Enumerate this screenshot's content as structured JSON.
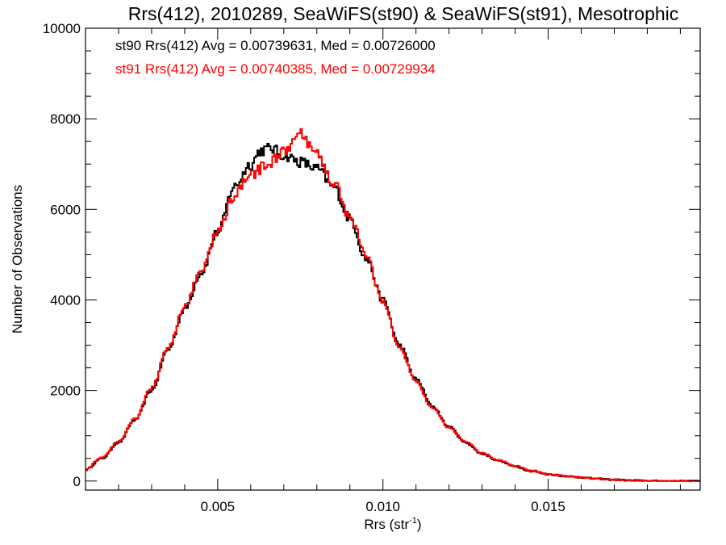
{
  "chart_data": {
    "type": "line",
    "title": "Rrs(412), 2010289, SeaWiFS(st90) & SeaWiFS(st91), Mesotrophic",
    "xlabel_base": "Rrs (str",
    "xlabel_sup": "-1",
    "xlabel_close": ")",
    "ylabel": "Number of Observations",
    "xlim": [
      0.001,
      0.0196
    ],
    "ylim": [
      -200,
      10000
    ],
    "x_ticks": [
      0.005,
      0.01,
      0.015
    ],
    "x_tick_labels": [
      "0.005",
      "0.010",
      "0.015"
    ],
    "y_ticks": [
      0,
      2000,
      4000,
      6000,
      8000,
      10000
    ],
    "y_tick_labels": [
      "0",
      "2000",
      "4000",
      "6000",
      "8000",
      "10000"
    ],
    "grid": false,
    "legend_position": "top-left",
    "series": [
      {
        "name": "st90",
        "label": "st90 Rrs(412) Avg = 0.00739631, Med = 0.00726000",
        "color": "#000000",
        "points": [
          [
            0.001,
            250
          ],
          [
            0.0015,
            500
          ],
          [
            0.002,
            850
          ],
          [
            0.0025,
            1350
          ],
          [
            0.003,
            2000
          ],
          [
            0.0035,
            2900
          ],
          [
            0.004,
            3800
          ],
          [
            0.0045,
            4600
          ],
          [
            0.005,
            5500
          ],
          [
            0.0055,
            6500
          ],
          [
            0.006,
            7000
          ],
          [
            0.0063,
            7300
          ],
          [
            0.0066,
            7350
          ],
          [
            0.007,
            7200
          ],
          [
            0.0075,
            7050
          ],
          [
            0.008,
            6900
          ],
          [
            0.0085,
            6500
          ],
          [
            0.009,
            5800
          ],
          [
            0.0095,
            4900
          ],
          [
            0.01,
            4000
          ],
          [
            0.0105,
            3000
          ],
          [
            0.011,
            2250
          ],
          [
            0.0115,
            1650
          ],
          [
            0.012,
            1200
          ],
          [
            0.0125,
            850
          ],
          [
            0.013,
            600
          ],
          [
            0.0135,
            450
          ],
          [
            0.014,
            320
          ],
          [
            0.0145,
            220
          ],
          [
            0.015,
            150
          ],
          [
            0.0155,
            110
          ],
          [
            0.016,
            80
          ],
          [
            0.0165,
            50
          ],
          [
            0.017,
            30
          ],
          [
            0.0175,
            15
          ],
          [
            0.018,
            5
          ],
          [
            0.0185,
            0
          ],
          [
            0.0196,
            0
          ]
        ]
      },
      {
        "name": "st91",
        "label": "st91 Rrs(412) Avg = 0.00740385, Med = 0.00729934",
        "color": "#ff0000",
        "points": [
          [
            0.001,
            260
          ],
          [
            0.0015,
            520
          ],
          [
            0.002,
            870
          ],
          [
            0.0025,
            1370
          ],
          [
            0.003,
            2050
          ],
          [
            0.0035,
            2950
          ],
          [
            0.004,
            3850
          ],
          [
            0.0045,
            4650
          ],
          [
            0.005,
            5500
          ],
          [
            0.0055,
            6300
          ],
          [
            0.006,
            6750
          ],
          [
            0.0065,
            7000
          ],
          [
            0.007,
            7250
          ],
          [
            0.0075,
            7650
          ],
          [
            0.008,
            7200
          ],
          [
            0.0085,
            6600
          ],
          [
            0.009,
            5850
          ],
          [
            0.0095,
            4950
          ],
          [
            0.01,
            3950
          ],
          [
            0.0105,
            2950
          ],
          [
            0.011,
            2200
          ],
          [
            0.0115,
            1600
          ],
          [
            0.012,
            1180
          ],
          [
            0.0125,
            870
          ],
          [
            0.013,
            620
          ],
          [
            0.0135,
            460
          ],
          [
            0.014,
            330
          ],
          [
            0.0145,
            230
          ],
          [
            0.015,
            155
          ],
          [
            0.0155,
            110
          ],
          [
            0.016,
            80
          ],
          [
            0.0165,
            50
          ],
          [
            0.017,
            30
          ],
          [
            0.0175,
            15
          ],
          [
            0.018,
            5
          ],
          [
            0.0185,
            0
          ],
          [
            0.0196,
            0
          ]
        ]
      }
    ]
  }
}
